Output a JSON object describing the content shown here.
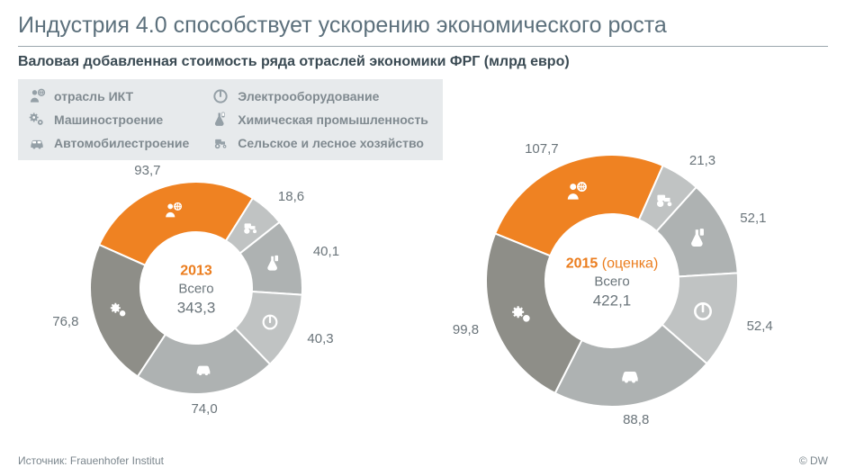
{
  "title": "Индустрия 4.0 способствует ускорению экономического роста",
  "subtitle": "Валовая добавленная стоимость ряда отраслей экономики ФРГ (млрд евро)",
  "legend": {
    "bg": "#e7eaec",
    "text_color": "#808a90",
    "icon_color": "#95a0a7",
    "items": [
      {
        "icon": "ict",
        "label": "отрасль ИКТ"
      },
      {
        "icon": "power",
        "label": "Электрооборудование"
      },
      {
        "icon": "gears",
        "label": "Машиностроение"
      },
      {
        "icon": "chem",
        "label": "Химическая промышленность"
      },
      {
        "icon": "car",
        "label": "Автомобилестроение"
      },
      {
        "icon": "farm",
        "label": "Сельское и лесное хозяйство"
      }
    ]
  },
  "icons_map": [
    "ict",
    "farm",
    "chem",
    "power",
    "car",
    "gears"
  ],
  "charts": [
    {
      "id": "2013",
      "year": "2013",
      "year_note": "",
      "total_label": "Всего",
      "total_value": "343,3",
      "outer_r": 118,
      "inner_r": 62,
      "start_deg": -66,
      "slices": [
        {
          "key": "ict",
          "value": 93.7,
          "label": "93,7",
          "color": "#ef8222"
        },
        {
          "key": "farm",
          "value": 18.6,
          "label": "18,6",
          "color": "#c0c3c3"
        },
        {
          "key": "chem",
          "value": 40.1,
          "label": "40,1",
          "color": "#aeb2b2"
        },
        {
          "key": "power",
          "value": 40.3,
          "label": "40,3",
          "color": "#c0c3c3"
        },
        {
          "key": "car",
          "value": 74.0,
          "label": "74,0",
          "color": "#aeb2b2"
        },
        {
          "key": "gears",
          "value": 76.8,
          "label": "76,8",
          "color": "#8e8e88"
        }
      ]
    },
    {
      "id": "2015",
      "year": "2015",
      "year_note": " (оценка)",
      "total_label": "Всего",
      "total_value": "422,1",
      "outer_r": 140,
      "inner_r": 74,
      "start_deg": -68,
      "slices": [
        {
          "key": "ict",
          "value": 107.7,
          "label": "107,7",
          "color": "#ef8222"
        },
        {
          "key": "farm",
          "value": 21.3,
          "label": "21,3",
          "color": "#c0c3c3"
        },
        {
          "key": "chem",
          "value": 52.1,
          "label": "52,1",
          "color": "#aeb2b2"
        },
        {
          "key": "power",
          "value": 52.4,
          "label": "52,4",
          "color": "#c0c3c3"
        },
        {
          "key": "car",
          "value": 88.8,
          "label": "88,8",
          "color": "#aeb2b2"
        },
        {
          "key": "gears",
          "value": 99.8,
          "label": "99,8",
          "color": "#8e8e88"
        }
      ]
    }
  ],
  "colors": {
    "title": "#5c707c",
    "subtitle": "#3a4a53",
    "accent": "#ef8222",
    "slice_gap": "#ffffff",
    "label": "#6a747a"
  },
  "footer": {
    "source": "Источник: Frauenhofer Institut",
    "brand": "© DW"
  }
}
